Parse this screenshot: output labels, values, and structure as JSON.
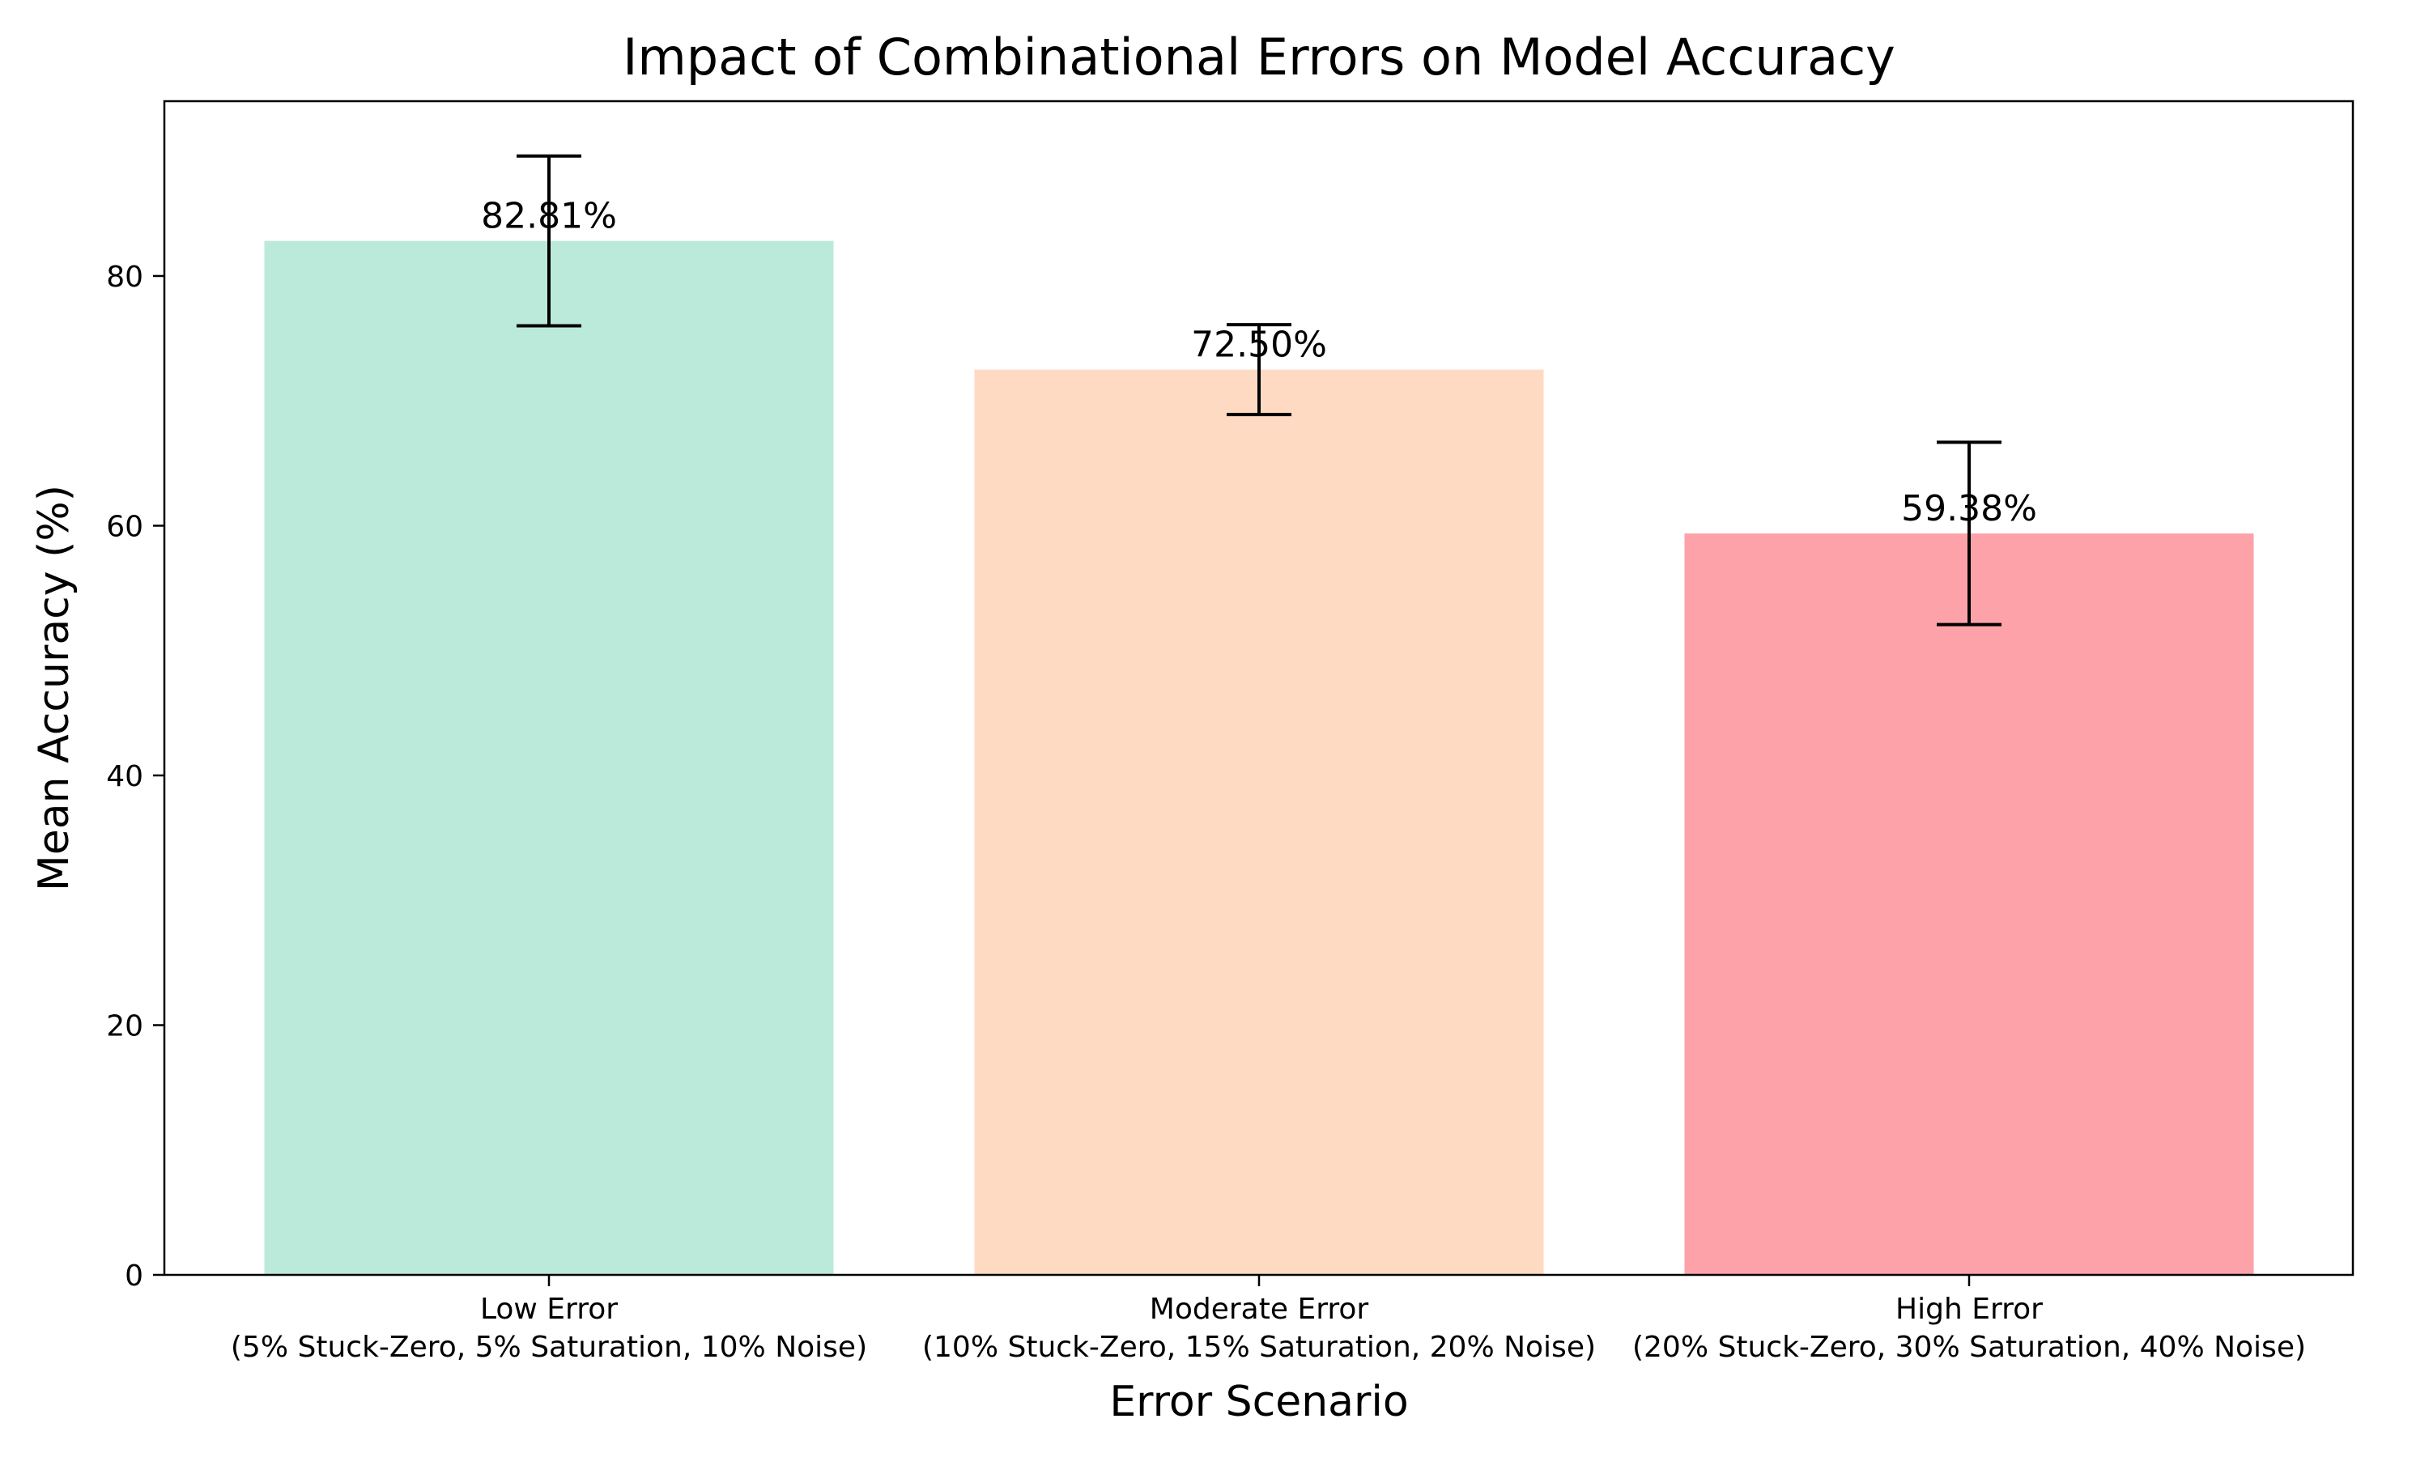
{
  "chart_data": {
    "type": "bar",
    "title": "Impact of Combinational Errors on Model Accuracy",
    "xlabel": "Error Scenario",
    "ylabel": "Mean Accuracy (%)",
    "ylim": [
      0,
      94
    ],
    "yticks": [
      0,
      20,
      40,
      60,
      80
    ],
    "grid": false,
    "categories": [
      {
        "line1": "Low Error",
        "line2": "(5% Stuck-Zero, 5% Saturation, 10% Noise)"
      },
      {
        "line1": "Moderate Error",
        "line2": "(10% Stuck-Zero, 15% Saturation, 20% Noise)"
      },
      {
        "line1": "High Error",
        "line2": "(20% Stuck-Zero, 30% Saturation, 40% Noise)"
      }
    ],
    "values": [
      82.81,
      72.5,
      59.38
    ],
    "errors": [
      6.8,
      3.6,
      7.3
    ],
    "value_labels": [
      "82.81%",
      "72.50%",
      "59.38%"
    ],
    "colors": [
      "#bbeada",
      "#fedac3",
      "#fea2aa"
    ]
  }
}
